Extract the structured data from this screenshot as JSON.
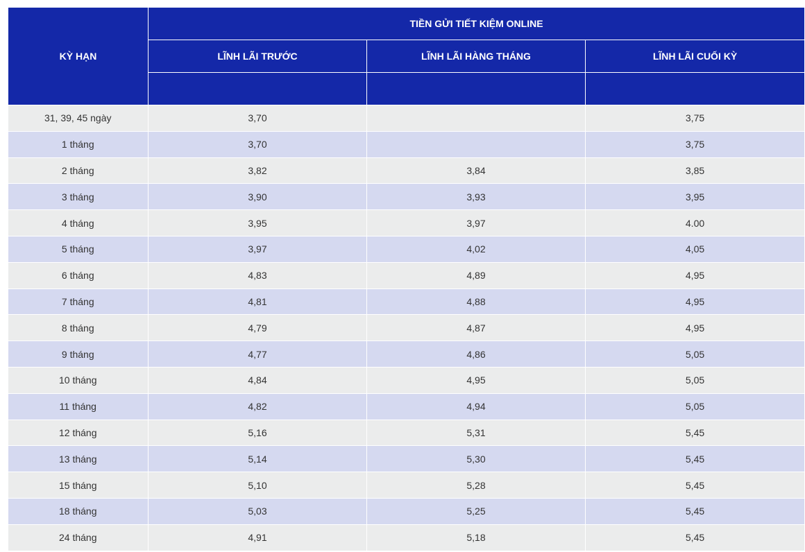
{
  "header": {
    "term": "KỲ HẠN",
    "group": "TIỀN GỬI TIẾT KIỆM ONLINE",
    "columns": [
      "LĨNH LÃI TRƯỚC",
      "LĨNH LÃI HÀNG THÁNG",
      "LĨNH LÃI CUỐI KỲ"
    ]
  },
  "table": {
    "rows": [
      [
        "31, 39, 45 ngày",
        "3,70",
        null,
        "3,75"
      ],
      [
        "1 tháng",
        "3,70",
        null,
        "3,75"
      ],
      [
        "2 tháng",
        "3,82",
        "3,84",
        "3,85"
      ],
      [
        "3 tháng",
        "3,90",
        "3,93",
        "3,95"
      ],
      [
        "4 tháng",
        "3,95",
        "3,97",
        "4.00"
      ],
      [
        "5 tháng",
        "3,97",
        "4,02",
        "4,05"
      ],
      [
        "6 tháng",
        "4,83",
        "4,89",
        "4,95"
      ],
      [
        "7 tháng",
        "4,81",
        "4,88",
        "4,95"
      ],
      [
        "8 tháng",
        "4,79",
        "4,87",
        "4,95"
      ],
      [
        "9 tháng",
        "4,77",
        "4,86",
        "5,05"
      ],
      [
        "10 tháng",
        "4,84",
        "4,95",
        "5,05"
      ],
      [
        "11 tháng",
        "4,82",
        "4,94",
        "5,05"
      ],
      [
        "12 tháng",
        "5,16",
        "5,31",
        "5,45"
      ],
      [
        "13 tháng",
        "5,14",
        "5,30",
        "5,45"
      ],
      [
        "15 tháng",
        "5,10",
        "5,28",
        "5,45"
      ],
      [
        "18 tháng",
        "5,03",
        "5,25",
        "5,45"
      ],
      [
        "24 tháng",
        "4,91",
        "5,18",
        "5,45"
      ]
    ]
  }
}
